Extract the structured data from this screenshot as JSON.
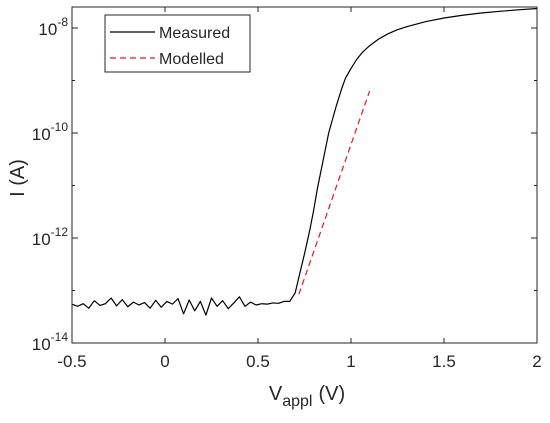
{
  "chart_data": {
    "type": "line",
    "xlabel": "V",
    "xlabel_sub": "appl",
    "xlabel_unit": "(V)",
    "ylabel": "I (A)",
    "xlim": [
      -0.5,
      2
    ],
    "ylim_log10": [
      -14,
      -7.6
    ],
    "y_scale": "log",
    "grid": false,
    "legend_position": "top-left",
    "x_ticks": [
      {
        "value": -0.5,
        "label": "-0.5"
      },
      {
        "value": 0,
        "label": "0"
      },
      {
        "value": 0.5,
        "label": "0.5"
      },
      {
        "value": 1,
        "label": "1"
      },
      {
        "value": 1.5,
        "label": "1.5"
      },
      {
        "value": 2,
        "label": "2"
      }
    ],
    "y_ticks": [
      {
        "exp": -14,
        "base": "10",
        "sup": "-14"
      },
      {
        "exp": -12,
        "base": "10",
        "sup": "-12"
      },
      {
        "exp": -10,
        "base": "10",
        "sup": "-10"
      },
      {
        "exp": -8,
        "base": "10",
        "sup": "-8"
      }
    ],
    "series": [
      {
        "name": "Measured",
        "color": "#000000",
        "style": "solid",
        "x": [
          -0.5,
          -0.47,
          -0.44,
          -0.41,
          -0.38,
          -0.35,
          -0.32,
          -0.29,
          -0.26,
          -0.23,
          -0.2,
          -0.17,
          -0.14,
          -0.11,
          -0.08,
          -0.05,
          -0.02,
          0.01,
          0.04,
          0.07,
          0.1,
          0.13,
          0.16,
          0.19,
          0.22,
          0.25,
          0.28,
          0.31,
          0.34,
          0.37,
          0.4,
          0.43,
          0.46,
          0.49,
          0.52,
          0.55,
          0.58,
          0.61,
          0.64,
          0.67,
          0.7,
          0.72,
          0.75,
          0.78,
          0.8,
          0.82,
          0.85,
          0.88,
          0.9,
          0.92,
          0.95,
          0.97,
          1.0,
          1.03,
          1.06,
          1.1,
          1.15,
          1.2,
          1.25,
          1.3,
          1.4,
          1.5,
          1.6,
          1.7,
          1.8,
          1.9,
          2.0
        ],
        "y": [
          5.5e-14,
          5e-14,
          5.6e-14,
          4.6e-14,
          6.4e-14,
          5.2e-14,
          5.6e-14,
          7.2e-14,
          5.1e-14,
          6.7e-14,
          4.9e-14,
          6e-14,
          5.3e-14,
          5.9e-14,
          4.6e-14,
          6.5e-14,
          4.8e-14,
          6.2e-14,
          5.5e-14,
          7e-14,
          3.6e-14,
          6.6e-14,
          4.1e-14,
          6.2e-14,
          3.4e-14,
          7.2e-14,
          5e-14,
          6.4e-14,
          4.5e-14,
          5.8e-14,
          7.6e-14,
          5e-14,
          6e-14,
          5.3e-14,
          5.6e-14,
          5.5e-14,
          5.8e-14,
          5.7e-14,
          6.2e-14,
          6.2e-14,
          9e-14,
          1.8e-13,
          5e-13,
          1.5e-12,
          3.5e-12,
          9e-12,
          3e-11,
          1e-10,
          1.8e-10,
          3.2e-10,
          7e-10,
          1.1e-09,
          1.7e-09,
          2.5e-09,
          3.4e-09,
          4.6e-09,
          6.2e-09,
          7.8e-09,
          9.3e-09,
          1.06e-08,
          1.32e-08,
          1.55e-08,
          1.75e-08,
          1.93e-08,
          2.08e-08,
          2.22e-08,
          2.35e-08
        ]
      },
      {
        "name": "Modelled",
        "color": "#e8191c",
        "style": "dashed",
        "x": [
          0.72,
          1.1
        ],
        "y": [
          8.5e-14,
          6.3e-10
        ]
      }
    ]
  }
}
